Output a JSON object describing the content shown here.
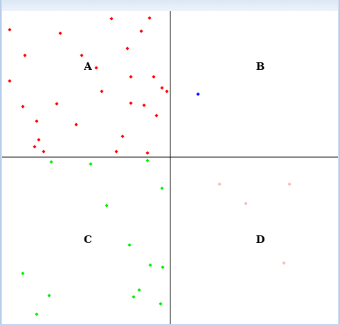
{
  "quadrants": [
    {
      "id": "A",
      "label": "A",
      "color": "#ff0000"
    },
    {
      "id": "B",
      "label": "B",
      "color": "#0000ff"
    },
    {
      "id": "C",
      "label": "C",
      "color": "#00ee00"
    },
    {
      "id": "D",
      "label": "D",
      "color": "#ffb6b6"
    }
  ],
  "chart_data": {
    "type": "scatter",
    "grid": false,
    "series": [
      {
        "quadrant": "A",
        "color": "#ff0000",
        "points": [
          [
            14,
            43
          ],
          [
            87,
            48
          ],
          [
            161,
            27
          ],
          [
            216,
            26
          ],
          [
            204,
            45
          ],
          [
            36,
            80
          ],
          [
            118,
            80
          ],
          [
            184,
            70
          ],
          [
            139,
            98
          ],
          [
            14,
            117
          ],
          [
            189,
            111
          ],
          [
            222,
            111
          ],
          [
            234,
            127
          ],
          [
            241,
            132
          ],
          [
            147,
            132
          ],
          [
            33,
            154
          ],
          [
            82,
            150
          ],
          [
            189,
            149
          ],
          [
            208,
            152
          ],
          [
            226,
            167
          ],
          [
            53,
            175
          ],
          [
            110,
            180
          ],
          [
            177,
            197
          ],
          [
            56,
            202
          ],
          [
            50,
            212
          ],
          [
            63,
            219
          ],
          [
            168,
            219
          ],
          [
            213,
            221
          ]
        ]
      },
      {
        "quadrant": "B",
        "color": "#0000ff",
        "points": [
          [
            286,
            136
          ]
        ]
      },
      {
        "quadrant": "C",
        "color": "#00ee00",
        "points": [
          [
            74,
            234
          ],
          [
            131,
            237
          ],
          [
            213,
            232
          ],
          [
            234,
            272
          ],
          [
            154,
            297
          ],
          [
            187,
            354
          ],
          [
            217,
            383
          ],
          [
            235,
            386
          ],
          [
            33,
            395
          ],
          [
            201,
            419
          ],
          [
            71,
            427
          ],
          [
            193,
            429
          ],
          [
            232,
            439
          ],
          [
            53,
            454
          ]
        ]
      },
      {
        "quadrant": "D",
        "color": "#ffb6b6",
        "points": [
          [
            317,
            266
          ],
          [
            418,
            266
          ],
          [
            355,
            294
          ],
          [
            410,
            380
          ]
        ]
      }
    ]
  }
}
